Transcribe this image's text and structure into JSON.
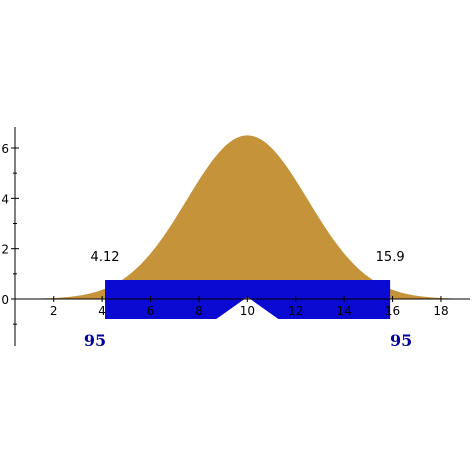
{
  "chart_data": {
    "type": "area",
    "title": "",
    "xlabel": "",
    "ylabel": "",
    "xlim": [
      0.4,
      19.2
    ],
    "ylim": [
      -1.6,
      6.8
    ],
    "curve": {
      "kind": "gaussian",
      "mean": 10,
      "sd": 2.5,
      "peak": 6.5,
      "fill_color": "#c5943a"
    },
    "x_ticks": [
      2,
      4,
      6,
      8,
      10,
      12,
      14,
      16,
      18
    ],
    "y_ticks": [
      0,
      2,
      4,
      6
    ],
    "annotations": [
      {
        "x": 4.12,
        "y": 1.7,
        "text": "4.12"
      },
      {
        "x": 15.9,
        "y": 1.7,
        "text": "15.9"
      }
    ],
    "interval": {
      "lower": 4.12,
      "upper": 15.9,
      "center": 10,
      "color": "#0a0ad2",
      "label_left": "95",
      "label_right": "95",
      "label_color": "#0000a0"
    },
    "grid": false
  }
}
